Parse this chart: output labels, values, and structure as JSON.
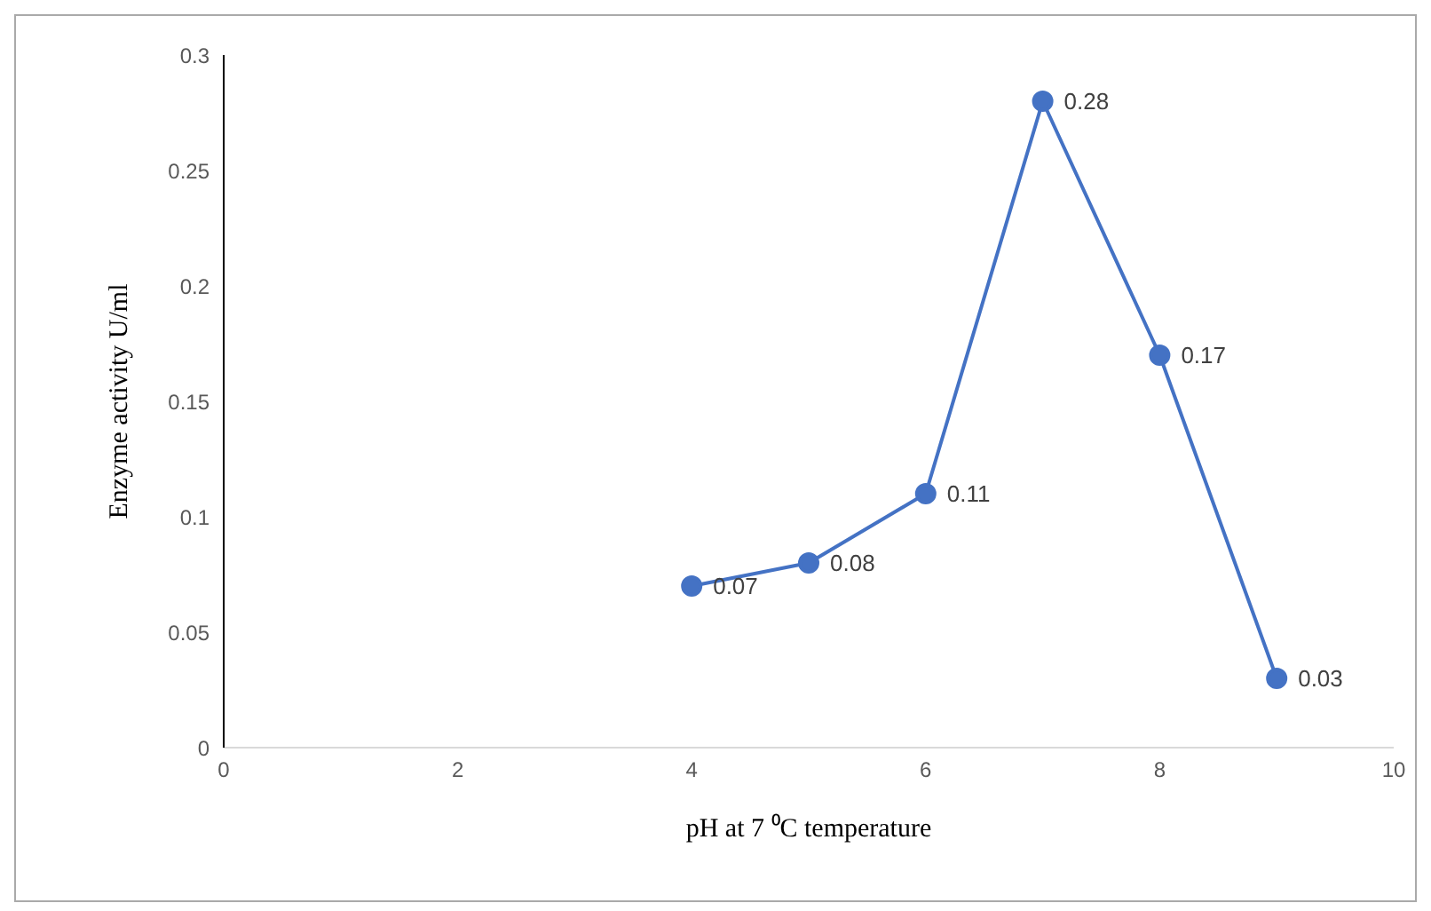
{
  "chart_data": {
    "type": "line",
    "xlabel": "pH at 7 ⁰C temperature",
    "ylabel": "Enzyme activity U/ml",
    "x": [
      4,
      5,
      6,
      7,
      8,
      9
    ],
    "series": [
      {
        "color": "#4472c4",
        "values": [
          0.07,
          0.08,
          0.11,
          0.28,
          0.17,
          0.03
        ]
      }
    ],
    "xlim": [
      0,
      10
    ],
    "xticks": [
      0,
      2,
      4,
      6,
      8,
      10
    ],
    "ylim": [
      0,
      0.3
    ],
    "yticks": [
      0,
      0.05,
      0.1,
      0.15,
      0.2,
      0.25,
      0.3
    ],
    "data_labels": true,
    "marker": "circle",
    "line_style": "solid"
  }
}
